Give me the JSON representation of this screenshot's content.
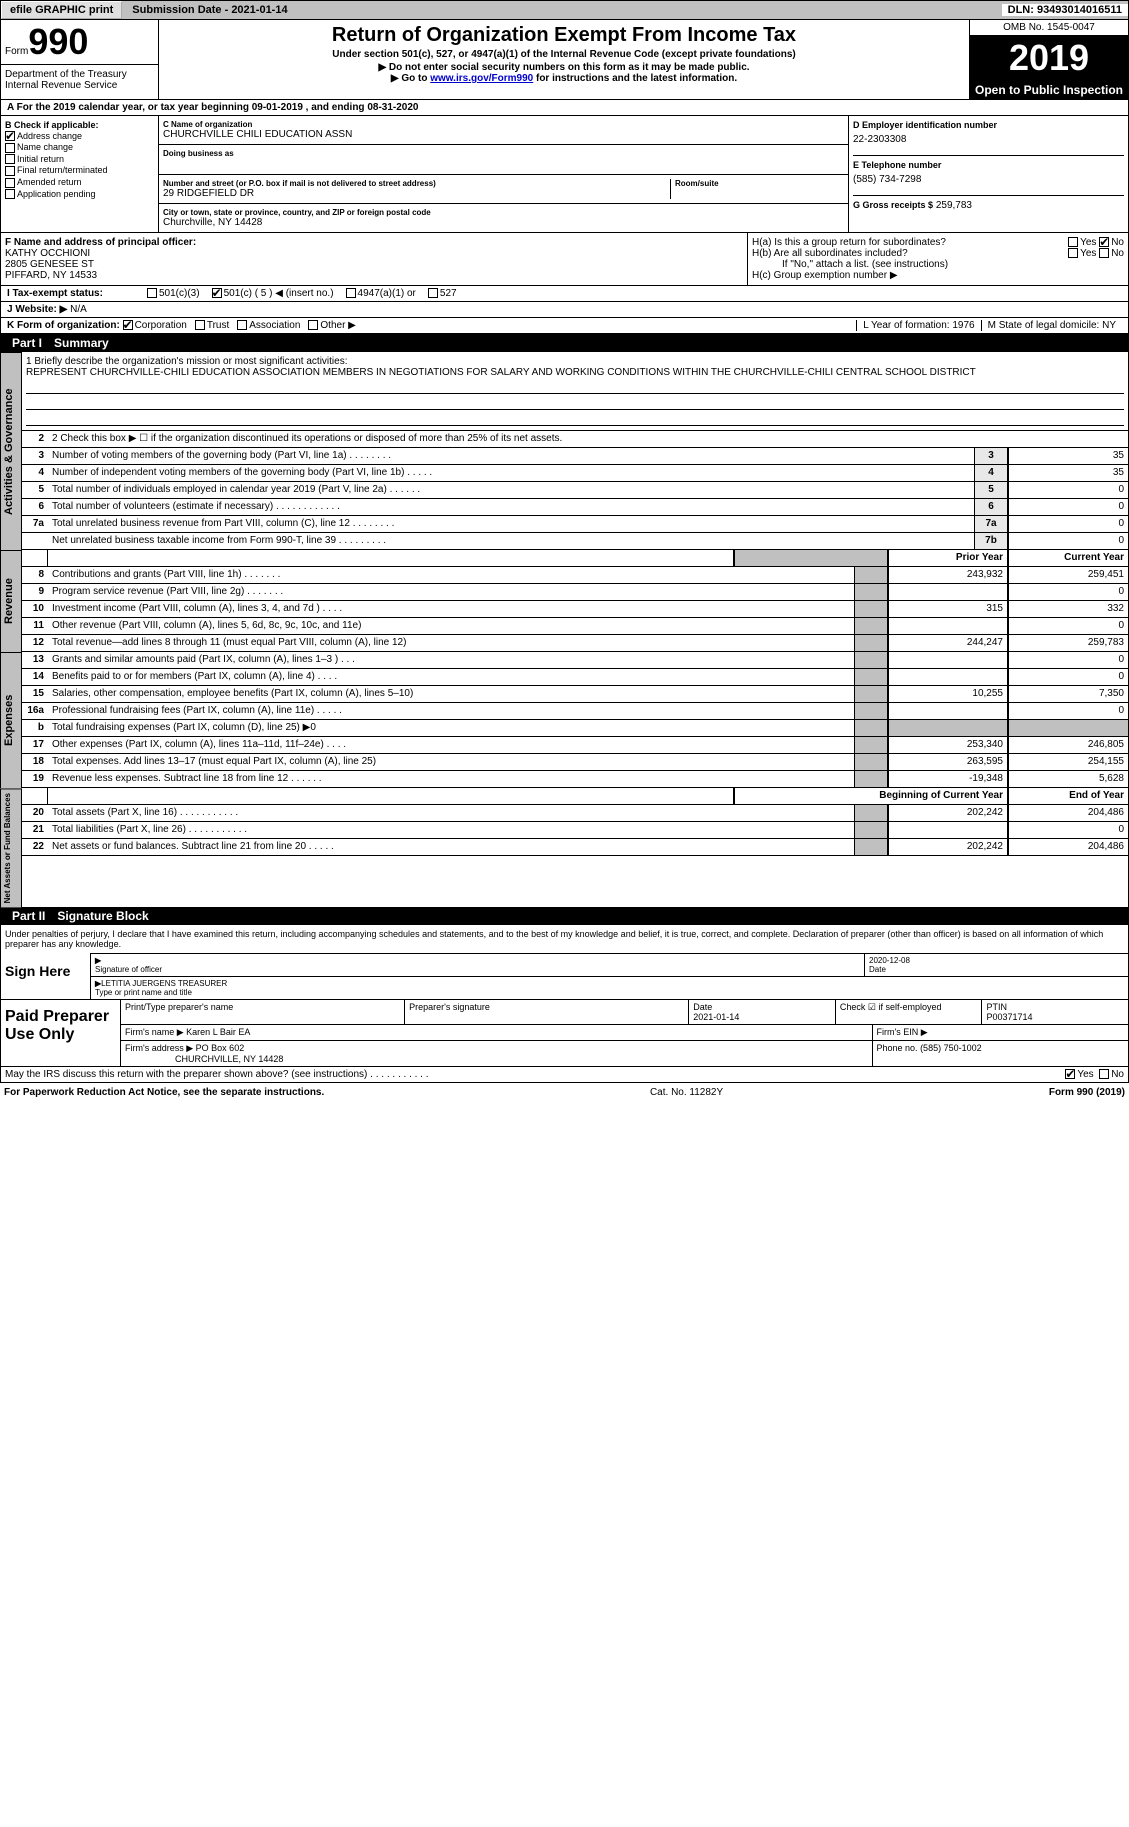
{
  "colors": {
    "header_bg": "#c0c0c0",
    "black": "#000000",
    "white": "#ffffff",
    "shade": "#e8e8e8",
    "link": "#0000cc"
  },
  "top_bar": {
    "efile": "efile GRAPHIC print",
    "sub_date_label": "Submission Date - 2021-01-14",
    "dln": "DLN: 93493014016511"
  },
  "header": {
    "form_label": "Form",
    "form_num": "990",
    "dept": "Department of the Treasury\nInternal Revenue Service",
    "title": "Return of Organization Exempt From Income Tax",
    "sub": "Under section 501(c), 527, or 4947(a)(1) of the Internal Revenue Code (except private foundations)",
    "instr1": "▶ Do not enter social security numbers on this form as it may be made public.",
    "instr2_pre": "▶ Go to ",
    "instr2_link": "www.irs.gov/Form990",
    "instr2_post": " for instructions and the latest information.",
    "omb": "OMB No. 1545-0047",
    "year": "2019",
    "inspect": "Open to Public Inspection"
  },
  "row_a": "A For the 2019 calendar year, or tax year beginning 09-01-2019    , and ending 08-31-2020",
  "col_b": {
    "title": "B Check if applicable:",
    "items": [
      {
        "label": "Address change",
        "checked": true
      },
      {
        "label": "Name change",
        "checked": false
      },
      {
        "label": "Initial return",
        "checked": false
      },
      {
        "label": "Final return/terminated",
        "checked": false
      },
      {
        "label": "Amended return",
        "checked": false
      },
      {
        "label": "Application pending",
        "checked": false
      }
    ]
  },
  "col_c": {
    "name_label": "C Name of organization",
    "name": "CHURCHVILLE CHILI EDUCATION ASSN",
    "dba_label": "Doing business as",
    "dba": "",
    "addr_label": "Number and street (or P.O. box if mail is not delivered to street address)",
    "room_label": "Room/suite",
    "addr": "29 RIDGEFIELD DR",
    "city_label": "City or town, state or province, country, and ZIP or foreign postal code",
    "city": "Churchville, NY  14428"
  },
  "col_d": {
    "ein_label": "D Employer identification number",
    "ein": "22-2303308",
    "phone_label": "E Telephone number",
    "phone": "(585) 734-7298",
    "gross_label": "G Gross receipts $",
    "gross": "259,783"
  },
  "row_f": {
    "label": "F Name and address of principal officer:",
    "name": "KATHY OCCHIONI",
    "addr1": "2805 GENESEE ST",
    "addr2": "PIFFARD, NY  14533"
  },
  "row_h": {
    "ha": "H(a)  Is this a group return for subordinates?",
    "ha_yes": "Yes",
    "ha_no": "No",
    "ha_checked": "No",
    "hb": "H(b)  Are all subordinates included?",
    "hb_yes": "Yes",
    "hb_no": "No",
    "hb_note": "If \"No,\" attach a list. (see instructions)",
    "hc": "H(c)  Group exemption number ▶"
  },
  "row_i": {
    "label": "I   Tax-exempt status:",
    "opts": [
      "501(c)(3)",
      "501(c) ( 5 ) ◀ (insert no.)",
      "4947(a)(1) or",
      "527"
    ],
    "checked_idx": 1
  },
  "row_j": {
    "label": "J   Website: ▶",
    "value": "N/A"
  },
  "row_k": {
    "label": "K Form of organization:",
    "opts": [
      "Corporation",
      "Trust",
      "Association",
      "Other ▶"
    ],
    "checked_idx": 0,
    "l": "L Year of formation: 1976",
    "m": "M State of legal domicile: NY"
  },
  "part1": {
    "num": "Part I",
    "title": "Summary"
  },
  "mission": {
    "label": "1   Briefly describe the organization's mission or most significant activities:",
    "text": "REPRESENT CHURCHVILLE-CHILI EDUCATION ASSOCIATION MEMBERS IN NEGOTIATIONS FOR SALARY AND WORKING CONDITIONS WITHIN THE CHURCHVILLE-CHILI CENTRAL SCHOOL DISTRICT"
  },
  "check2": "2    Check this box ▶ ☐  if the organization discontinued its operations or disposed of more than 25% of its net assets.",
  "gov_lines": [
    {
      "n": "3",
      "d": "Number of voting members of the governing body (Part VI, line 1a)   .    .    .    .    .    .    .    .",
      "box": "3",
      "v": "35"
    },
    {
      "n": "4",
      "d": "Number of independent voting members of the governing body (Part VI, line 1b)    .    .    .    .    .",
      "box": "4",
      "v": "35"
    },
    {
      "n": "5",
      "d": "Total number of individuals employed in calendar year 2019 (Part V, line 2a)    .    .    .    .    .    .",
      "box": "5",
      "v": "0"
    },
    {
      "n": "6",
      "d": "Total number of volunteers (estimate if necessary)    .    .    .    .    .    .    .    .    .    .    .    .",
      "box": "6",
      "v": "0"
    },
    {
      "n": "7a",
      "d": "Total unrelated business revenue from Part VIII, column (C), line 12   .    .    .    .    .    .    .    .",
      "box": "7a",
      "v": "0"
    },
    {
      "n": "",
      "d": "Net unrelated business taxable income from Form 990-T, line 39   .    .    .    .    .    .    .    .    .",
      "box": "7b",
      "v": "0"
    }
  ],
  "rev_header": {
    "prior": "Prior Year",
    "curr": "Current Year"
  },
  "rev_lines": [
    {
      "n": "8",
      "d": "Contributions and grants (Part VIII, line 1h)   .    .    .    .    .    .    .",
      "p": "243,932",
      "c": "259,451"
    },
    {
      "n": "9",
      "d": "Program service revenue (Part VIII, line 2g)   .    .    .    .    .    .    .",
      "p": "",
      "c": "0"
    },
    {
      "n": "10",
      "d": "Investment income (Part VIII, column (A), lines 3, 4, and 7d )   .    .    .    .",
      "p": "315",
      "c": "332"
    },
    {
      "n": "11",
      "d": "Other revenue (Part VIII, column (A), lines 5, 6d, 8c, 9c, 10c, and 11e)",
      "p": "",
      "c": "0"
    },
    {
      "n": "12",
      "d": "Total revenue—add lines 8 through 11 (must equal Part VIII, column (A), line 12)",
      "p": "244,247",
      "c": "259,783"
    }
  ],
  "exp_lines": [
    {
      "n": "13",
      "d": "Grants and similar amounts paid (Part IX, column (A), lines 1–3 )   .    .    .",
      "p": "",
      "c": "0"
    },
    {
      "n": "14",
      "d": "Benefits paid to or for members (Part IX, column (A), line 4)   .    .    .    .",
      "p": "",
      "c": "0"
    },
    {
      "n": "15",
      "d": "Salaries, other compensation, employee benefits (Part IX, column (A), lines 5–10)",
      "p": "10,255",
      "c": "7,350"
    },
    {
      "n": "16a",
      "d": "Professional fundraising fees (Part IX, column (A), line 11e)   .    .    .    .    .",
      "p": "",
      "c": "0"
    },
    {
      "n": "b",
      "d": "Total fundraising expenses (Part IX, column (D), line 25) ▶0",
      "p": "shade",
      "c": "shade"
    },
    {
      "n": "17",
      "d": "Other expenses (Part IX, column (A), lines 11a–11d, 11f–24e)   .    .    .    .",
      "p": "253,340",
      "c": "246,805"
    },
    {
      "n": "18",
      "d": "Total expenses. Add lines 13–17 (must equal Part IX, column (A), line 25)",
      "p": "263,595",
      "c": "254,155"
    },
    {
      "n": "19",
      "d": "Revenue less expenses. Subtract line 18 from line 12   .    .    .    .    .    .",
      "p": "-19,348",
      "c": "5,628"
    }
  ],
  "na_header": {
    "beg": "Beginning of Current Year",
    "end": "End of Year"
  },
  "na_lines": [
    {
      "n": "20",
      "d": "Total assets (Part X, line 16)   .    .    .    .    .    .    .    .    .    .    .",
      "p": "202,242",
      "c": "204,486"
    },
    {
      "n": "21",
      "d": "Total liabilities (Part X, line 26)   .    .    .    .    .    .    .    .    .    .    .",
      "p": "",
      "c": "0"
    },
    {
      "n": "22",
      "d": "Net assets or fund balances. Subtract line 21 from line 20   .    .    .    .    .",
      "p": "202,242",
      "c": "204,486"
    }
  ],
  "vtabs": {
    "gov": "Activities & Governance",
    "rev": "Revenue",
    "exp": "Expenses",
    "na": "Net Assets or Fund Balances"
  },
  "part2": {
    "num": "Part II",
    "title": "Signature Block"
  },
  "sig": {
    "decl": "Under penalties of perjury, I declare that I have examined this return, including accompanying schedules and statements, and to the best of my knowledge and belief, it is true, correct, and complete. Declaration of preparer (other than officer) is based on all information of which preparer has any knowledge.",
    "sign_here": "Sign Here",
    "sig_officer": "Signature of officer",
    "date": "Date",
    "date_val": "2020-12-08",
    "name_title": "LETITIA JUERGENS  TREASURER",
    "type_label": "Type or print name and title"
  },
  "prep": {
    "label": "Paid Preparer Use Only",
    "h1": "Print/Type preparer's name",
    "h2": "Preparer's signature",
    "h3": "Date",
    "h3v": "2021-01-14",
    "h4": "Check ☑ if self-employed",
    "h5": "PTIN",
    "h5v": "P00371714",
    "firm_name_l": "Firm's name    ▶",
    "firm_name": "Karen L Bair EA",
    "firm_ein_l": "Firm's EIN ▶",
    "firm_ein": "",
    "firm_addr_l": "Firm's address ▶",
    "firm_addr": "PO Box 602",
    "firm_city": "CHURCHVILLE, NY  14428",
    "firm_phone_l": "Phone no.",
    "firm_phone": "(585) 750-1002"
  },
  "discuss": {
    "q": "May the IRS discuss this return with the preparer shown above? (see instructions)   .    .    .    .    .    .    .    .    .    .    .",
    "yes": "Yes",
    "no": "No",
    "checked": "Yes"
  },
  "footer": {
    "left": "For Paperwork Reduction Act Notice, see the separate instructions.",
    "mid": "Cat. No. 11282Y",
    "right": "Form 990 (2019)"
  }
}
